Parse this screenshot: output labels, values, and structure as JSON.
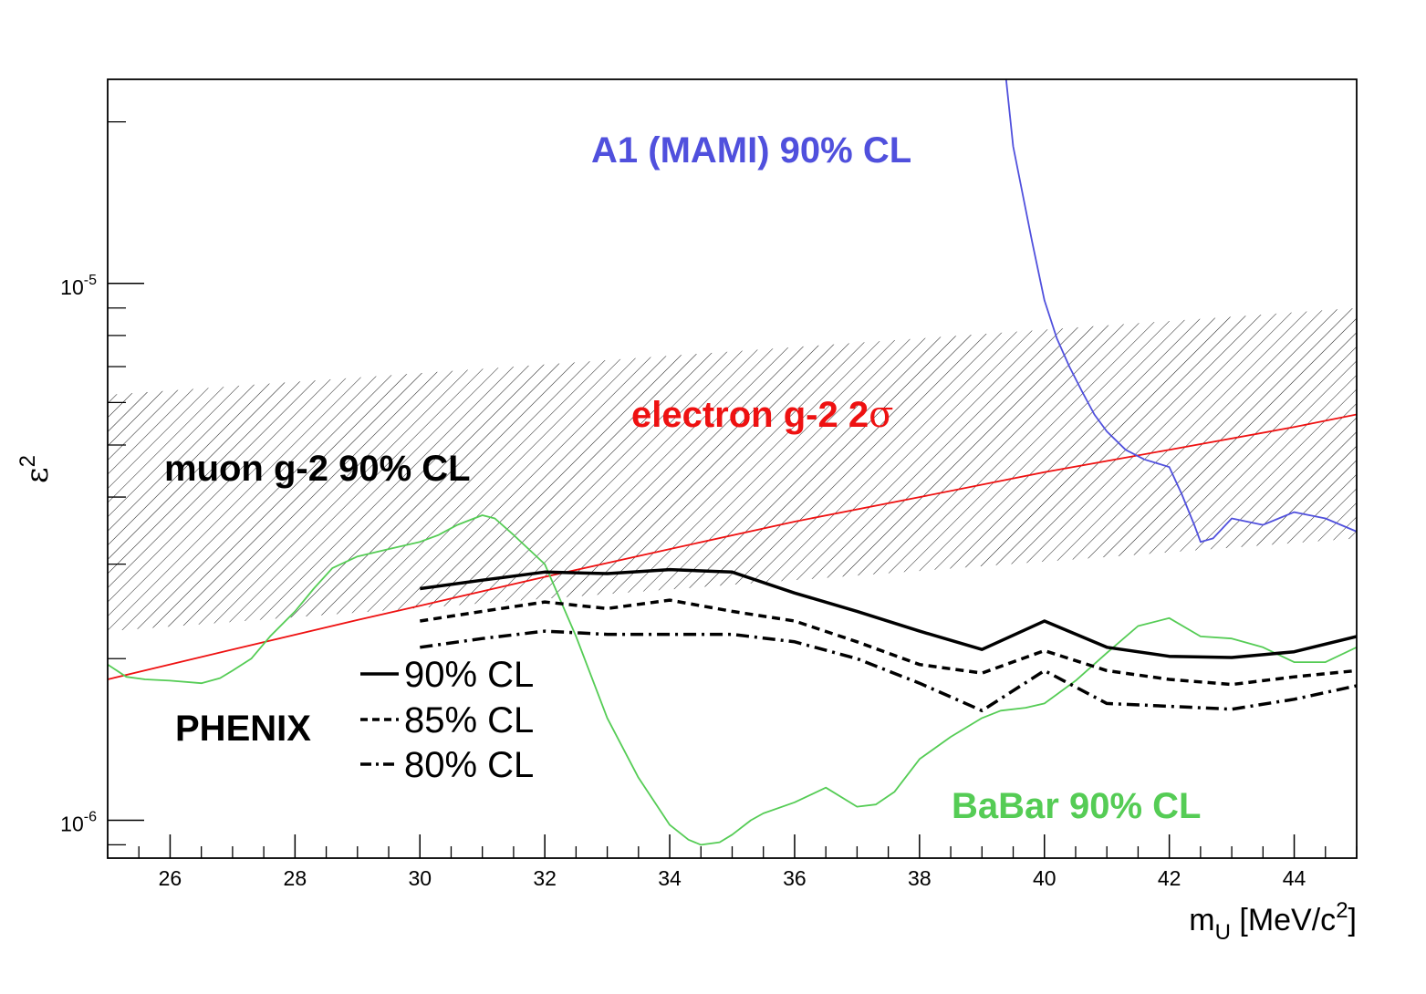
{
  "chart_data": {
    "type": "line",
    "xlabel": "m",
    "xlabel_sub": "U",
    "xlabel_unit_pre": " [MeV/c",
    "xlabel_unit_sup": "2",
    "xlabel_unit_post": "]",
    "ylabel": "ε",
    "ylabel_sup": "2",
    "xlim": [
      25,
      45
    ],
    "ylim": [
      8.5e-07,
      2.4e-05
    ],
    "yscale": "log",
    "grid": false,
    "x_ticks": [
      26,
      28,
      30,
      32,
      34,
      36,
      38,
      40,
      42,
      44
    ],
    "x_tick_labels": [
      "26",
      "28",
      "30",
      "32",
      "34",
      "36",
      "38",
      "40",
      "42",
      "44"
    ],
    "y_major_ticks": [
      {
        "value": 1e-06,
        "base": "10",
        "exp": "-6"
      },
      {
        "value": 1e-05,
        "base": "10",
        "exp": "-5"
      }
    ],
    "y_minor_ticks": [
      9e-07,
      2e-06,
      3e-06,
      4e-06,
      5e-06,
      6e-06,
      7e-06,
      8e-06,
      9e-06,
      2e-05
    ],
    "band": {
      "label": "muon g-2 90% CL",
      "x": [
        25,
        45
      ],
      "lower": [
        2.25e-06,
        3.35e-06
      ],
      "upper": [
        6.2e-06,
        9e-06
      ],
      "hatch_color": "#000000"
    },
    "series": [
      {
        "name": "electron g-2 2σ",
        "color": "#ee1111",
        "x": [
          25,
          27,
          29,
          30,
          32,
          34,
          36,
          38,
          40,
          42,
          44,
          45
        ],
        "y": [
          1.83e-06,
          2.08e-06,
          2.36e-06,
          2.51e-06,
          2.84e-06,
          3.2e-06,
          3.6e-06,
          4e-06,
          4.45e-06,
          4.9e-06,
          5.4e-06,
          5.7e-06
        ]
      },
      {
        "name": "A1 (MAMI) 90% CL",
        "color": "#5050dd",
        "x": [
          39.3,
          39.5,
          39.8,
          40.0,
          40.2,
          40.4,
          40.6,
          40.8,
          41.0,
          41.3,
          41.6,
          42.0,
          42.2,
          42.4,
          42.5,
          42.7,
          43.0,
          43.5,
          44.0,
          44.5,
          45.0
        ],
        "y": [
          3e-05,
          1.8e-05,
          1.2e-05,
          9.3e-06,
          7.9e-06,
          7e-06,
          6.3e-06,
          5.7e-06,
          5.3e-06,
          4.9e-06,
          4.7e-06,
          4.55e-06,
          4.05e-06,
          3.55e-06,
          3.3e-06,
          3.35e-06,
          3.65e-06,
          3.55e-06,
          3.75e-06,
          3.65e-06,
          3.45e-06
        ]
      },
      {
        "name": "BaBar 90% CL",
        "color": "#55cc55",
        "x": [
          25.0,
          25.3,
          25.6,
          26.0,
          26.5,
          26.8,
          27.0,
          27.3,
          27.6,
          28.0,
          28.3,
          28.6,
          29.0,
          29.5,
          30.0,
          30.3,
          30.6,
          31.0,
          31.2,
          31.5,
          32.0,
          32.5,
          33.0,
          33.5,
          34.0,
          34.3,
          34.5,
          34.8,
          35.0,
          35.3,
          35.5,
          36.0,
          36.5,
          37.0,
          37.3,
          37.6,
          38.0,
          38.5,
          39.0,
          39.3,
          39.7,
          40.0,
          40.5,
          41.0,
          41.5,
          42.0,
          42.5,
          43.0,
          43.5,
          44.0,
          44.5,
          45.0
        ],
        "y": [
          1.95e-06,
          1.85e-06,
          1.83e-06,
          1.82e-06,
          1.8e-06,
          1.84e-06,
          1.9e-06,
          2e-06,
          2.2e-06,
          2.45e-06,
          2.7e-06,
          2.95e-06,
          3.1e-06,
          3.2e-06,
          3.3e-06,
          3.4e-06,
          3.55e-06,
          3.7e-06,
          3.65e-06,
          3.4e-06,
          3e-06,
          2.2e-06,
          1.55e-06,
          1.2e-06,
          9.8e-07,
          9.2e-07,
          9e-07,
          9.1e-07,
          9.4e-07,
          1e-06,
          1.03e-06,
          1.08e-06,
          1.15e-06,
          1.06e-06,
          1.07e-06,
          1.13e-06,
          1.3e-06,
          1.43e-06,
          1.55e-06,
          1.6e-06,
          1.62e-06,
          1.65e-06,
          1.82e-06,
          2.05e-06,
          2.3e-06,
          2.38e-06,
          2.2e-06,
          2.18e-06,
          2.1e-06,
          1.97e-06,
          1.97e-06,
          2.1e-06
        ]
      },
      {
        "name": "90% CL",
        "group": "PHENIX",
        "color": "#000000",
        "dash": "solid",
        "x": [
          30,
          31,
          32,
          33,
          34,
          35,
          36,
          37,
          38,
          39,
          40,
          41,
          42,
          43,
          44,
          45
        ],
        "y": [
          2.7e-06,
          2.8e-06,
          2.9e-06,
          2.88e-06,
          2.93e-06,
          2.9e-06,
          2.65e-06,
          2.45e-06,
          2.25e-06,
          2.08e-06,
          2.35e-06,
          2.1e-06,
          2.02e-06,
          2.01e-06,
          2.06e-06,
          2.2e-06
        ]
      },
      {
        "name": "85% CL",
        "group": "PHENIX",
        "color": "#000000",
        "dash": "dashed",
        "x": [
          30,
          31,
          32,
          33,
          34,
          35,
          36,
          37,
          38,
          39,
          40,
          41,
          42,
          43,
          44,
          45
        ],
        "y": [
          2.35e-06,
          2.45e-06,
          2.55e-06,
          2.48e-06,
          2.57e-06,
          2.45e-06,
          2.35e-06,
          2.15e-06,
          1.95e-06,
          1.88e-06,
          2.07e-06,
          1.9e-06,
          1.83e-06,
          1.79e-06,
          1.85e-06,
          1.9e-06
        ]
      },
      {
        "name": "80% CL",
        "group": "PHENIX",
        "color": "#000000",
        "dash": "dashdot",
        "x": [
          30,
          31,
          32,
          33,
          34,
          35,
          36,
          37,
          38,
          39,
          40,
          41,
          42,
          43,
          44,
          45
        ],
        "y": [
          2.1e-06,
          2.18e-06,
          2.25e-06,
          2.22e-06,
          2.22e-06,
          2.22e-06,
          2.15e-06,
          2e-06,
          1.8e-06,
          1.6e-06,
          1.9e-06,
          1.65e-06,
          1.63e-06,
          1.61e-06,
          1.68e-06,
          1.78e-06
        ]
      }
    ],
    "annotations": {
      "a1": {
        "text": "A1 (MAMI) 90% CL",
        "color": "#5050dd"
      },
      "electron_a": {
        "text": "electron g-2 2",
        "color": "#ee1111"
      },
      "electron_b": {
        "text": "σ",
        "color": "#ee1111"
      },
      "muon": {
        "text": "muon g-2 90% CL",
        "color": "#000000"
      },
      "babar": {
        "text": "BaBar 90% CL",
        "color": "#55cc55"
      },
      "phenix": {
        "text": "PHENIX",
        "color": "#000000"
      }
    }
  }
}
